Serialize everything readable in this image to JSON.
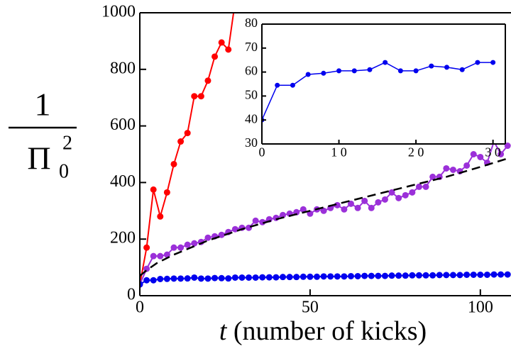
{
  "chart_data": [
    {
      "type": "line",
      "ylabel": {
        "numerator": "1",
        "denominator": "Π",
        "subscript": "0",
        "superscript": "2"
      },
      "xlabel": {
        "variable": "t",
        "text": "(number of kicks)"
      },
      "xlim": [
        0,
        109
      ],
      "ylim": [
        0,
        1000
      ],
      "xticks": [
        0,
        50,
        100
      ],
      "yticks": [
        0,
        200,
        400,
        600,
        800,
        1000
      ],
      "series": [
        {
          "color": "#ff0000",
          "marker": true,
          "style": "solid",
          "x": [
            0,
            2,
            4,
            6,
            8,
            10,
            12,
            14,
            16,
            18,
            20,
            22,
            24,
            26,
            28
          ],
          "values": [
            40,
            170,
            375,
            280,
            365,
            465,
            545,
            575,
            705,
            705,
            760,
            845,
            895,
            870,
            1040
          ]
        },
        {
          "color": "#9b30d9",
          "marker": true,
          "style": "solid",
          "x": [
            0,
            2,
            4,
            6,
            8,
            10,
            12,
            14,
            16,
            18,
            20,
            22,
            24,
            26,
            28,
            30,
            32,
            34,
            36,
            38,
            40,
            42,
            44,
            46,
            48,
            50,
            52,
            54,
            56,
            58,
            60,
            62,
            64,
            66,
            68,
            70,
            72,
            74,
            76,
            78,
            80,
            82,
            84,
            86,
            88,
            90,
            92,
            94,
            96,
            98,
            100,
            102,
            104,
            106,
            108
          ],
          "values": [
            40,
            95,
            140,
            140,
            145,
            170,
            170,
            180,
            185,
            190,
            205,
            210,
            215,
            225,
            235,
            240,
            240,
            265,
            260,
            270,
            275,
            285,
            290,
            295,
            305,
            290,
            305,
            300,
            310,
            320,
            305,
            325,
            310,
            335,
            310,
            330,
            340,
            365,
            345,
            355,
            365,
            385,
            385,
            420,
            420,
            450,
            445,
            440,
            460,
            500,
            490,
            470,
            545,
            500,
            530
          ]
        },
        {
          "color": "#0000ee",
          "marker": true,
          "style": "solid",
          "x": [
            0,
            2,
            4,
            6,
            8,
            10,
            12,
            14,
            16,
            18,
            20,
            22,
            24,
            26,
            28,
            30,
            32,
            34,
            36,
            38,
            40,
            42,
            44,
            46,
            48,
            50,
            52,
            54,
            56,
            58,
            60,
            62,
            64,
            66,
            68,
            70,
            72,
            74,
            76,
            78,
            80,
            82,
            84,
            86,
            88,
            90,
            92,
            94,
            96,
            98,
            100,
            102,
            104,
            106,
            108
          ],
          "values": [
            40,
            54.5,
            54.5,
            59,
            59.5,
            60.5,
            60.5,
            61,
            64,
            60.5,
            60.5,
            62.5,
            62,
            61,
            64,
            64,
            64,
            64,
            65,
            65,
            65,
            66,
            66,
            66,
            67,
            67,
            67,
            68,
            68,
            68,
            68,
            69,
            69,
            70,
            70,
            70,
            70,
            71,
            71,
            71,
            72,
            72,
            72,
            72,
            73,
            73,
            73,
            73,
            74,
            74,
            74,
            74,
            75,
            75,
            75
          ]
        },
        {
          "color": "#000000",
          "marker": false,
          "style": "dashed",
          "x": [
            0,
            2,
            5,
            10,
            20,
            30,
            40,
            50,
            60,
            70,
            80,
            90,
            100,
            108
          ],
          "values": [
            70,
            90,
            115,
            145,
            195,
            235,
            270,
            300,
            330,
            360,
            390,
            420,
            455,
            485
          ]
        }
      ]
    },
    {
      "type": "line",
      "xlim": [
        0,
        31.6
      ],
      "ylim": [
        30,
        80
      ],
      "xticks": [
        0,
        {
          "value": 10,
          "label": "1 0"
        },
        {
          "value": 20,
          "label": "2 0"
        },
        {
          "value": 30,
          "label": "3 0"
        }
      ],
      "yticks": [
        30,
        40,
        50,
        60,
        70,
        80
      ],
      "series": [
        {
          "color": "#0000ee",
          "marker": true,
          "style": "solid",
          "x": [
            0,
            2,
            4,
            6,
            8,
            10,
            12,
            14,
            16,
            18,
            20,
            22,
            24,
            26,
            28,
            30
          ],
          "values": [
            40,
            54.5,
            54.5,
            59,
            59.5,
            60.5,
            60.5,
            61,
            64,
            60.5,
            60.5,
            62.5,
            62,
            61,
            64,
            64
          ]
        }
      ]
    }
  ]
}
